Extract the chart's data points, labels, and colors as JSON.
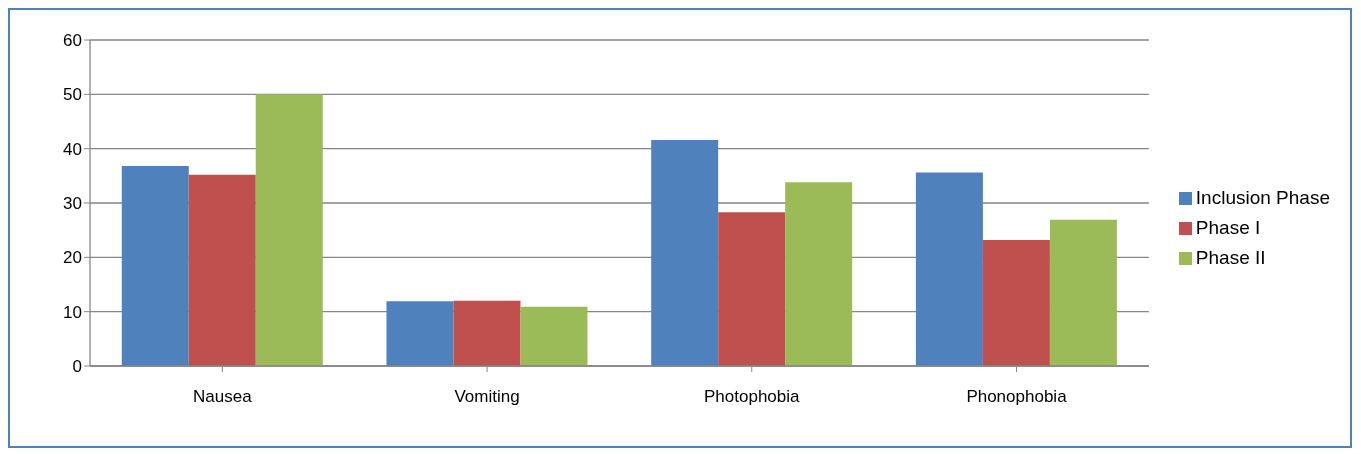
{
  "chart_data": {
    "type": "bar",
    "categories": [
      "Nausea",
      "Vomiting",
      "Photophobia",
      "Phonophobia"
    ],
    "series": [
      {
        "name": "Inclusion Phase",
        "color": "#4f81bd",
        "values": [
          36.8,
          11.9,
          41.6,
          35.6
        ]
      },
      {
        "name": "Phase I",
        "color": "#c0504d",
        "values": [
          35.2,
          12,
          28.3,
          23.2
        ]
      },
      {
        "name": "Phase II",
        "color": "#9bbb59",
        "values": [
          50,
          10.9,
          33.8,
          26.9
        ]
      }
    ],
    "ylim": [
      0,
      60
    ],
    "yticks": [
      0,
      10,
      20,
      30,
      40,
      50,
      60
    ],
    "grid": "y",
    "legend": "right"
  }
}
